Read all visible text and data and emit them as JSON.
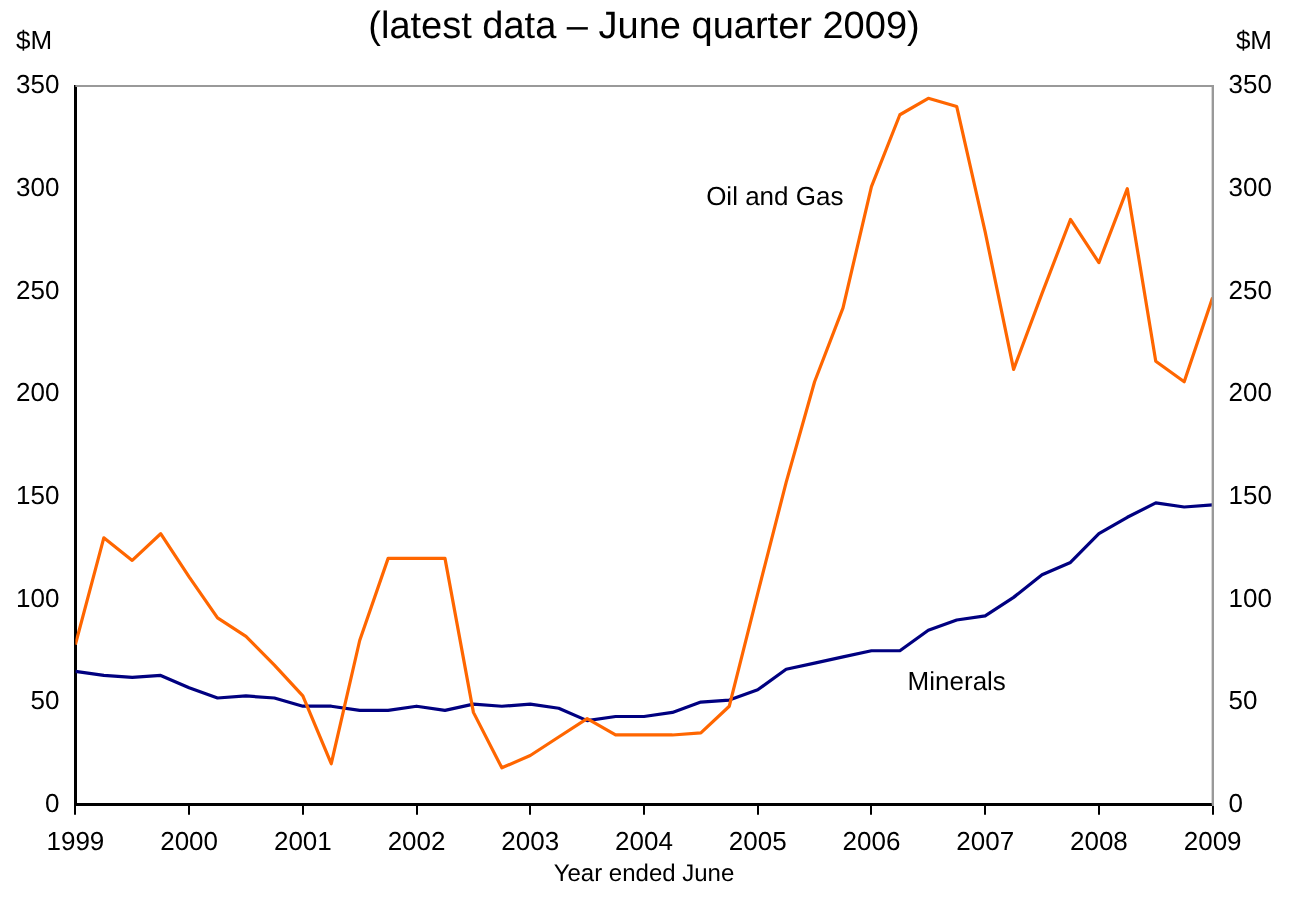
{
  "chart_data": {
    "type": "line",
    "subtitle": "(latest data – June quarter 2009)",
    "xlabel": "Year ended June",
    "ylabel": "$M",
    "y2label": "$M",
    "x": [
      1999,
      1999.25,
      1999.5,
      1999.75,
      2000,
      2000.25,
      2000.5,
      2000.75,
      2001,
      2001.25,
      2001.5,
      2001.75,
      2002,
      2002.25,
      2002.5,
      2002.75,
      2003,
      2003.25,
      2003.5,
      2003.75,
      2004,
      2004.25,
      2004.5,
      2004.75,
      2005,
      2005.25,
      2005.5,
      2005.75,
      2006,
      2006.25,
      2006.5,
      2006.75,
      2007,
      2007.25,
      2007.5,
      2007.75,
      2008,
      2008.25,
      2008.5,
      2008.75,
      2009
    ],
    "series": [
      {
        "name": "Oil and Gas",
        "color": "#ff6600",
        "values": [
          78,
          130,
          119,
          132,
          111,
          91,
          82,
          68,
          53,
          20,
          80,
          120,
          120,
          120,
          45,
          18,
          24,
          33,
          42,
          34,
          34,
          34,
          35,
          48,
          103,
          157,
          206,
          242,
          301,
          336,
          344,
          340,
          279,
          212,
          249,
          285,
          264,
          300,
          216,
          206,
          247
        ]
      },
      {
        "name": "Minerals",
        "color": "#000080",
        "values": [
          65,
          63,
          62,
          63,
          57,
          52,
          53,
          52,
          48,
          48,
          46,
          46,
          48,
          46,
          49,
          48,
          49,
          47,
          41,
          43,
          43,
          45,
          50,
          51,
          56,
          66,
          69,
          72,
          75,
          75,
          85,
          90,
          92,
          101,
          112,
          118,
          132,
          140,
          147,
          145,
          146
        ]
      }
    ],
    "xlim": [
      1999,
      2009
    ],
    "xticks": [
      1999,
      2000,
      2001,
      2002,
      2003,
      2004,
      2005,
      2006,
      2007,
      2008,
      2009
    ],
    "ylim": [
      0,
      350
    ],
    "yticks": [
      0,
      50,
      100,
      150,
      200,
      250,
      300,
      350
    ],
    "y2lim": [
      0,
      350
    ],
    "y2ticks": [
      0,
      50,
      100,
      150,
      200,
      250,
      300,
      350
    ],
    "grid": false,
    "legend": false,
    "marker": "none",
    "line_style": "solid"
  }
}
